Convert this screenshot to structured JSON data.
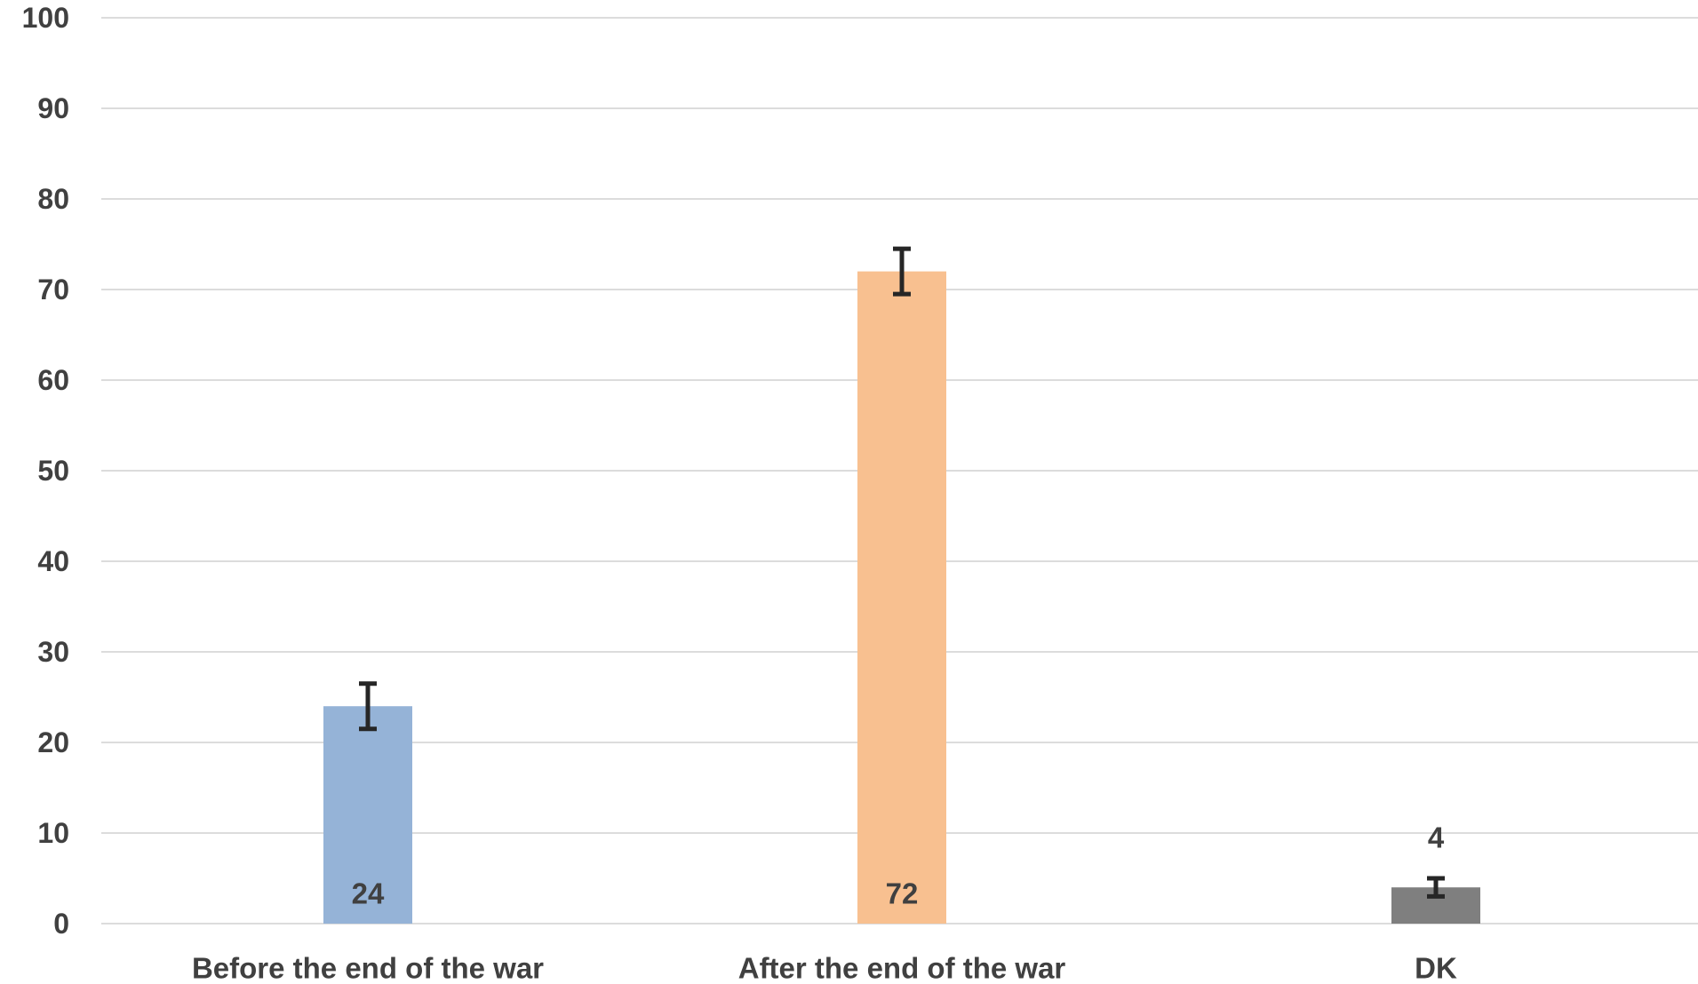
{
  "chart_data": {
    "type": "bar",
    "title": "",
    "xlabel": "",
    "ylabel": "",
    "categories": [
      "Before the end of the war",
      "After the end of the war",
      "DK"
    ],
    "values": [
      24,
      72,
      4
    ],
    "data_labels": [
      "24",
      "72",
      "4"
    ],
    "error_bars": [
      {
        "low": 21.5,
        "high": 26.5
      },
      {
        "low": 69.5,
        "high": 74.5
      },
      {
        "low": 3.0,
        "high": 5.0
      }
    ],
    "colors": [
      "#95b3d7",
      "#f8c090",
      "#7f7f7f"
    ],
    "ylim": [
      0,
      100
    ],
    "yticks": [
      0,
      10,
      20,
      30,
      40,
      50,
      60,
      70,
      80,
      90,
      100
    ],
    "ytick_labels": [
      "0",
      "10",
      "20",
      "30",
      "40",
      "50",
      "60",
      "70",
      "80",
      "90",
      "100"
    ],
    "grid": true,
    "legend": "none",
    "gridline_color": "#d0d0d0",
    "text_color": "#404040",
    "errorbar_color": "#262626"
  }
}
